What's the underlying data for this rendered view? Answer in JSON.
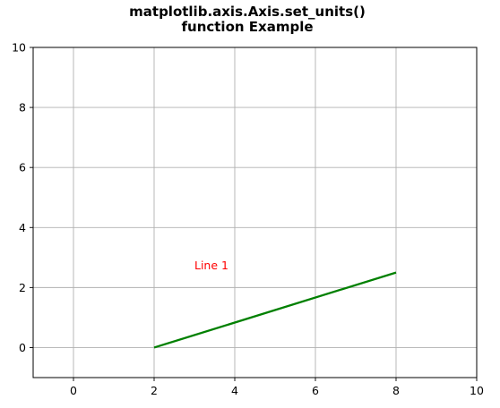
{
  "chart_data": {
    "type": "line",
    "title_lines": [
      "matplotlib.axis.Axis.set_units()",
      "function Example"
    ],
    "xlabel": "",
    "ylabel": "",
    "xlim": [
      -1,
      10
    ],
    "ylim": [
      -1,
      10
    ],
    "xticks": [
      0,
      2,
      4,
      6,
      8,
      10
    ],
    "yticks": [
      0,
      2,
      4,
      6,
      8,
      10
    ],
    "grid": true,
    "series": [
      {
        "x": [
          2,
          8
        ],
        "y": [
          0,
          2.5
        ],
        "color": "#008000"
      }
    ],
    "annotations": [
      {
        "text": "Line 1",
        "x": 3,
        "y": 2.6,
        "color": "#ff0000"
      }
    ]
  }
}
